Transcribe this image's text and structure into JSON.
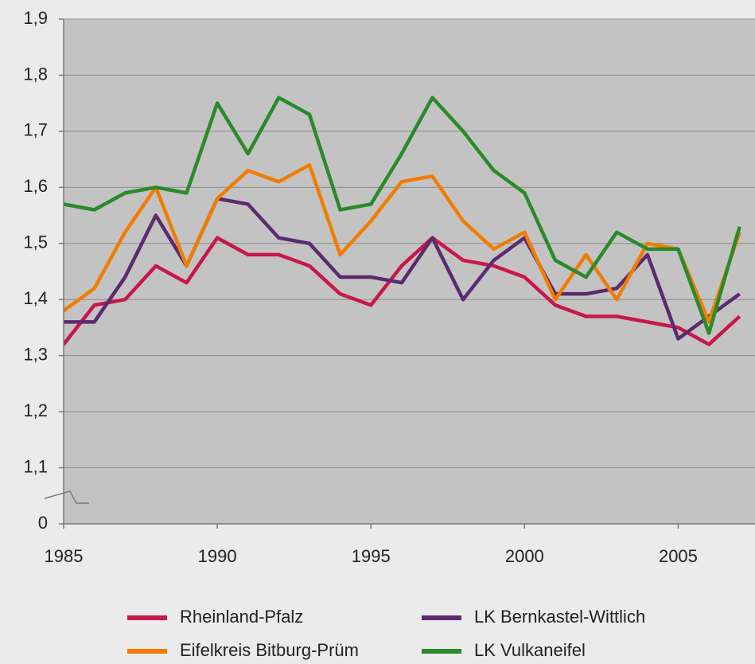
{
  "chart_data": {
    "type": "line",
    "x": [
      1985,
      1986,
      1987,
      1988,
      1989,
      1990,
      1991,
      1992,
      1993,
      1994,
      1995,
      1996,
      1997,
      1998,
      1999,
      2000,
      2001,
      2002,
      2003,
      2004,
      2005,
      2006,
      2007
    ],
    "series": [
      {
        "name": "Rheinland-Pfalz",
        "color": "#c8174a",
        "values": [
          1.32,
          1.39,
          1.4,
          1.46,
          1.43,
          1.51,
          1.48,
          1.48,
          1.46,
          1.41,
          1.39,
          1.46,
          1.51,
          1.47,
          1.46,
          1.44,
          1.39,
          1.37,
          1.37,
          1.36,
          1.35,
          1.32,
          1.37
        ]
      },
      {
        "name": "LK Bernkastel-Wittlich",
        "color": "#5c2a6e",
        "values": [
          1.36,
          1.36,
          1.44,
          1.55,
          1.46,
          1.58,
          1.57,
          1.51,
          1.5,
          1.44,
          1.44,
          1.43,
          1.51,
          1.4,
          1.47,
          1.51,
          1.41,
          1.41,
          1.42,
          1.48,
          1.33,
          1.37,
          1.41
        ]
      },
      {
        "name": "Eifelkreis Bitburg-Prüm",
        "color": "#f07d00",
        "values": [
          1.38,
          1.42,
          1.52,
          1.6,
          1.46,
          1.58,
          1.63,
          1.61,
          1.64,
          1.48,
          1.54,
          1.61,
          1.62,
          1.54,
          1.49,
          1.52,
          1.4,
          1.48,
          1.4,
          1.5,
          1.49,
          1.36,
          1.52
        ]
      },
      {
        "name": "LK Vulkaneifel",
        "color": "#2a8a2a",
        "values": [
          1.57,
          1.56,
          1.59,
          1.6,
          1.59,
          1.75,
          1.66,
          1.76,
          1.73,
          1.56,
          1.57,
          1.66,
          1.76,
          1.7,
          1.63,
          1.59,
          1.47,
          1.44,
          1.52,
          1.49,
          1.49,
          1.34,
          1.53
        ]
      }
    ],
    "xlim": [
      1985,
      2007.5
    ],
    "xticks": [
      1985,
      1990,
      1995,
      2000,
      2005
    ],
    "ylim": [
      1.0,
      1.9
    ],
    "yticks": [
      {
        "value": 1.1,
        "label": "1,1"
      },
      {
        "value": 1.2,
        "label": "1,2"
      },
      {
        "value": 1.3,
        "label": "1,3"
      },
      {
        "value": 1.4,
        "label": "1,4"
      },
      {
        "value": 1.5,
        "label": "1,5"
      },
      {
        "value": 1.6,
        "label": "1,6"
      },
      {
        "value": 1.7,
        "label": "1,7"
      },
      {
        "value": 1.8,
        "label": "1,8"
      },
      {
        "value": 1.9,
        "label": "1,9"
      }
    ],
    "y_axis_break_label": "0",
    "grid": true
  }
}
